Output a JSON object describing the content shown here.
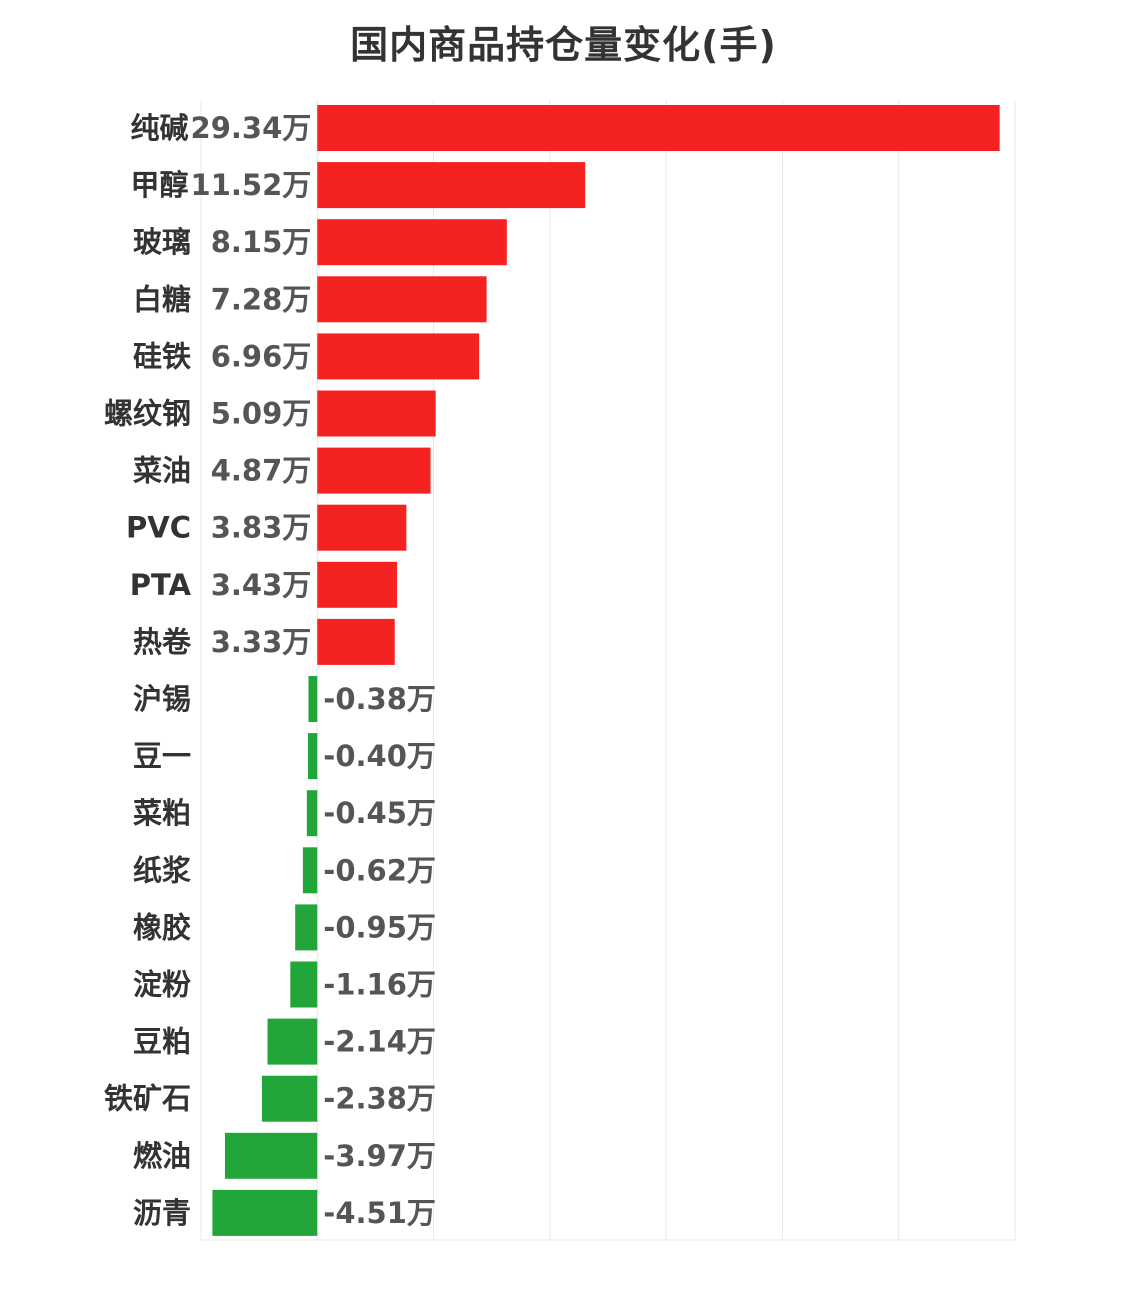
{
  "chart_data": {
    "type": "bar",
    "orientation": "horizontal",
    "title": "国内商品持仓量变化(手)",
    "value_suffix": "万",
    "categories": [
      "纯碱",
      "甲醇",
      "玻璃",
      "白糖",
      "硅铁",
      "螺纹钢",
      "菜油",
      "PVC",
      "PTA",
      "热卷",
      "沪锡",
      "豆一",
      "菜粕",
      "纸浆",
      "橡胶",
      "淀粉",
      "豆粕",
      "铁矿石",
      "燃油",
      "沥青"
    ],
    "values": [
      29.34,
      11.52,
      8.15,
      7.28,
      6.96,
      5.09,
      4.87,
      3.83,
      3.43,
      3.33,
      -0.38,
      -0.4,
      -0.45,
      -0.62,
      -0.95,
      -1.16,
      -2.14,
      -2.38,
      -3.97,
      -4.51
    ],
    "value_labels": [
      "29.34万",
      "11.52万",
      "8.15万",
      "7.28万",
      "6.96万",
      "5.09万",
      "4.87万",
      "3.83万",
      "3.43万",
      "3.33万",
      "-0.38万",
      "-0.40万",
      "-0.45万",
      "-0.62万",
      "-0.95万",
      "-1.16万",
      "-2.14万",
      "-2.38万",
      "-3.97万",
      "-4.51万"
    ],
    "xlim": [
      -5,
      30
    ],
    "grid": true,
    "positive_color": "#f52222",
    "negative_color": "#22a63a"
  }
}
